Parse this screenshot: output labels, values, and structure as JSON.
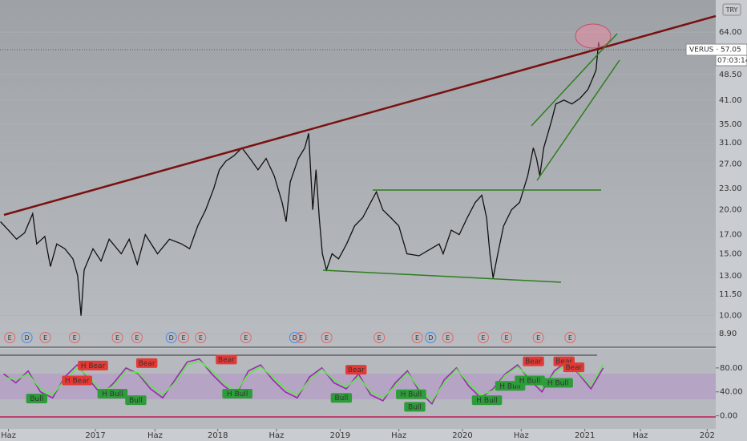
{
  "chart_data": [
    {
      "type": "line",
      "currency": "TRY",
      "price_label": "VERUS · 57.05",
      "countdown": "07:03:14",
      "log_scale": true,
      "grid": true,
      "color": "#111111",
      "xlim": [
        2016.22,
        2022.07
      ],
      "ylim": [
        8.18,
        79
      ],
      "yticks": [
        {
          "value": 8.9,
          "label": "8.90"
        },
        {
          "value": 10,
          "label": "10.00"
        },
        {
          "value": 11.5,
          "label": "11.50"
        },
        {
          "value": 13,
          "label": "13.00"
        },
        {
          "value": 15,
          "label": "15.00"
        },
        {
          "value": 17,
          "label": "17.00"
        },
        {
          "value": 20,
          "label": "20.00"
        },
        {
          "value": 23,
          "label": "23.00"
        },
        {
          "value": 27,
          "label": "27.00"
        },
        {
          "value": 31,
          "label": "31.00"
        },
        {
          "value": 35,
          "label": "35.00"
        },
        {
          "value": 41,
          "label": "41.00"
        },
        {
          "value": 48.5,
          "label": "48.50"
        },
        {
          "value": 64,
          "label": "64.00"
        }
      ],
      "x": [
        2016.224,
        2016.289,
        2016.355,
        2016.421,
        2016.487,
        2016.52,
        2016.586,
        2016.632,
        2016.684,
        2016.75,
        2016.816,
        2016.855,
        2016.882,
        2016.908,
        2016.98,
        2017.046,
        2017.112,
        2017.211,
        2017.276,
        2017.342,
        2017.408,
        2017.507,
        2017.605,
        2017.704,
        2017.77,
        2017.836,
        2017.901,
        2017.967,
        2018.013,
        2018.066,
        2018.132,
        2018.197,
        2018.263,
        2018.329,
        2018.395,
        2018.461,
        2018.526,
        2018.559,
        2018.592,
        2018.658,
        2018.711,
        2018.743,
        2018.776,
        2018.803,
        2018.829,
        2018.855,
        2018.888,
        2018.934,
        2018.987,
        2019.053,
        2019.118,
        2019.184,
        2019.25,
        2019.296,
        2019.349,
        2019.414,
        2019.48,
        2019.546,
        2019.645,
        2019.743,
        2019.809,
        2019.842,
        2019.908,
        2019.974,
        2020.039,
        2020.105,
        2020.158,
        2020.197,
        2020.224,
        2020.25,
        2020.289,
        2020.336,
        2020.401,
        2020.467,
        2020.533,
        2020.579,
        2020.605,
        2020.632,
        2020.664,
        2020.73,
        2020.763,
        2020.829,
        2020.895,
        2020.961,
        2021.026,
        2021.072,
        2021.092,
        2021.112,
        2021.125
      ],
      "values": [
        18.5,
        17.5,
        16.5,
        17.2,
        19.5,
        16,
        16.8,
        13.8,
        16,
        15.5,
        14.5,
        13,
        10,
        13.5,
        15.5,
        14.3,
        16.5,
        15,
        16.5,
        14,
        17,
        15,
        16.5,
        16,
        15.5,
        18,
        20,
        23,
        26,
        27.5,
        28.5,
        30,
        28,
        26,
        28,
        25,
        21,
        18.5,
        24,
        28,
        30,
        33,
        20,
        26,
        19,
        15,
        13.5,
        15,
        14.5,
        16,
        18,
        19,
        21,
        22.5,
        20,
        19,
        18,
        15,
        14.8,
        15.5,
        16,
        15,
        17.5,
        17,
        19,
        21,
        22,
        19,
        15,
        12.8,
        15,
        18,
        20,
        21,
        25,
        30,
        28,
        25,
        30,
        36,
        40,
        41,
        40,
        41.5,
        44,
        48,
        50,
        60,
        57.05
      ],
      "events": [
        {
          "label": "E",
          "x": 2016.3
        },
        {
          "label": "D",
          "x": 2016.44
        },
        {
          "label": "E",
          "x": 2016.59
        },
        {
          "label": "E",
          "x": 2016.83
        },
        {
          "label": "E",
          "x": 2017.18
        },
        {
          "label": "E",
          "x": 2017.34
        },
        {
          "label": "D",
          "x": 2017.62
        },
        {
          "label": "E",
          "x": 2017.72
        },
        {
          "label": "E",
          "x": 2017.86
        },
        {
          "label": "E",
          "x": 2018.23
        },
        {
          "label": "D",
          "x": 2018.63
        },
        {
          "label": "E",
          "x": 2018.68
        },
        {
          "label": "E",
          "x": 2018.89
        },
        {
          "label": "E",
          "x": 2019.32
        },
        {
          "label": "E",
          "x": 2019.63
        },
        {
          "label": "D",
          "x": 2019.74
        },
        {
          "label": "E",
          "x": 2019.88
        },
        {
          "label": "E",
          "x": 2020.17
        },
        {
          "label": "E",
          "x": 2020.36
        },
        {
          "label": "E",
          "x": 2020.62
        },
        {
          "label": "E",
          "x": 2020.88
        }
      ],
      "event_colors": {
        "E": "#e06666",
        "D": "#4a86e8"
      }
    },
    {
      "type": "line",
      "xlim": [
        2016.22,
        2022.07
      ],
      "ylim": [
        -22,
        112
      ],
      "yticks": [
        {
          "value": 0,
          "label": "0.00"
        },
        {
          "value": 40,
          "label": "40.00"
        },
        {
          "value": 80,
          "label": "80.00"
        }
      ],
      "xticks": [
        {
          "value": 2016.289,
          "label": "Haz"
        },
        2017,
        {
          "value": 2017.487,
          "label": "Haz"
        },
        2018,
        {
          "value": 2018.48,
          "label": "Haz"
        },
        2019,
        {
          "value": 2019.48,
          "label": "Haz"
        },
        2020,
        {
          "value": 2020.48,
          "label": "Haz"
        },
        2021,
        {
          "value": 2021.454,
          "label": "Haz"
        },
        {
          "value": 2022,
          "label": "202"
        }
      ],
      "x": [
        2016.25,
        2016.35,
        2016.45,
        2016.55,
        2016.65,
        2016.75,
        2016.85,
        2016.95,
        2017.05,
        2017.15,
        2017.25,
        2017.35,
        2017.45,
        2017.55,
        2017.65,
        2017.75,
        2017.85,
        2017.95,
        2018.05,
        2018.15,
        2018.25,
        2018.35,
        2018.45,
        2018.55,
        2018.65,
        2018.75,
        2018.85,
        2018.95,
        2019.05,
        2019.15,
        2019.25,
        2019.35,
        2019.45,
        2019.55,
        2019.65,
        2019.75,
        2019.85,
        2019.95,
        2020.05,
        2020.15,
        2020.25,
        2020.35,
        2020.45,
        2020.55,
        2020.65,
        2020.75,
        2020.85,
        2020.95,
        2021.05,
        2021.15
      ],
      "series": [
        {
          "color": "#9c27b0",
          "values": [
            70,
            55,
            75,
            40,
            30,
            65,
            85,
            60,
            35,
            55,
            80,
            70,
            45,
            30,
            60,
            90,
            95,
            70,
            50,
            35,
            75,
            85,
            60,
            40,
            30,
            65,
            80,
            55,
            45,
            70,
            35,
            25,
            55,
            75,
            40,
            20,
            60,
            80,
            50,
            30,
            45,
            70,
            85,
            60,
            40,
            75,
            90,
            70,
            45,
            80
          ]
        },
        {
          "color": "#5ee84a",
          "values": [
            65,
            60,
            70,
            45,
            35,
            60,
            80,
            65,
            40,
            50,
            75,
            72,
            50,
            35,
            55,
            85,
            92,
            75,
            55,
            40,
            70,
            82,
            65,
            45,
            35,
            60,
            78,
            60,
            48,
            65,
            40,
            30,
            50,
            72,
            45,
            25,
            55,
            78,
            55,
            35,
            42,
            68,
            82,
            65,
            45,
            70,
            88,
            72,
            50,
            85
          ]
        }
      ],
      "signals": [
        {
          "label": "H Bear",
          "x": 2016.98,
          "y": 84
        },
        {
          "label": "Bear",
          "x": 2017.42,
          "y": 88
        },
        {
          "label": "H Bear",
          "x": 2016.85,
          "y": 59
        },
        {
          "label": "H Bull",
          "x": 2017.14,
          "y": 37
        },
        {
          "label": "Bull",
          "x": 2016.52,
          "y": 29
        },
        {
          "label": "Bull",
          "x": 2017.33,
          "y": 26
        },
        {
          "label": "Bear",
          "x": 2018.07,
          "y": 94
        },
        {
          "label": "H Bull",
          "x": 2018.16,
          "y": 37
        },
        {
          "label": "Bull",
          "x": 2019.01,
          "y": 30
        },
        {
          "label": "Bear",
          "x": 2019.13,
          "y": 77
        },
        {
          "label": "H Bull",
          "x": 2019.58,
          "y": 36
        },
        {
          "label": "Bull",
          "x": 2019.61,
          "y": 15
        },
        {
          "label": "H Bull",
          "x": 2020.2,
          "y": 26
        },
        {
          "label": "H Bull",
          "x": 2020.39,
          "y": 50
        },
        {
          "label": "H Bull",
          "x": 2020.55,
          "y": 59
        },
        {
          "label": "Bear",
          "x": 2020.58,
          "y": 91
        },
        {
          "label": "Bear",
          "x": 2020.83,
          "y": 91
        },
        {
          "label": "H Bull",
          "x": 2020.78,
          "y": 55
        },
        {
          "label": "Bear",
          "x": 2020.91,
          "y": 81
        }
      ]
    }
  ]
}
